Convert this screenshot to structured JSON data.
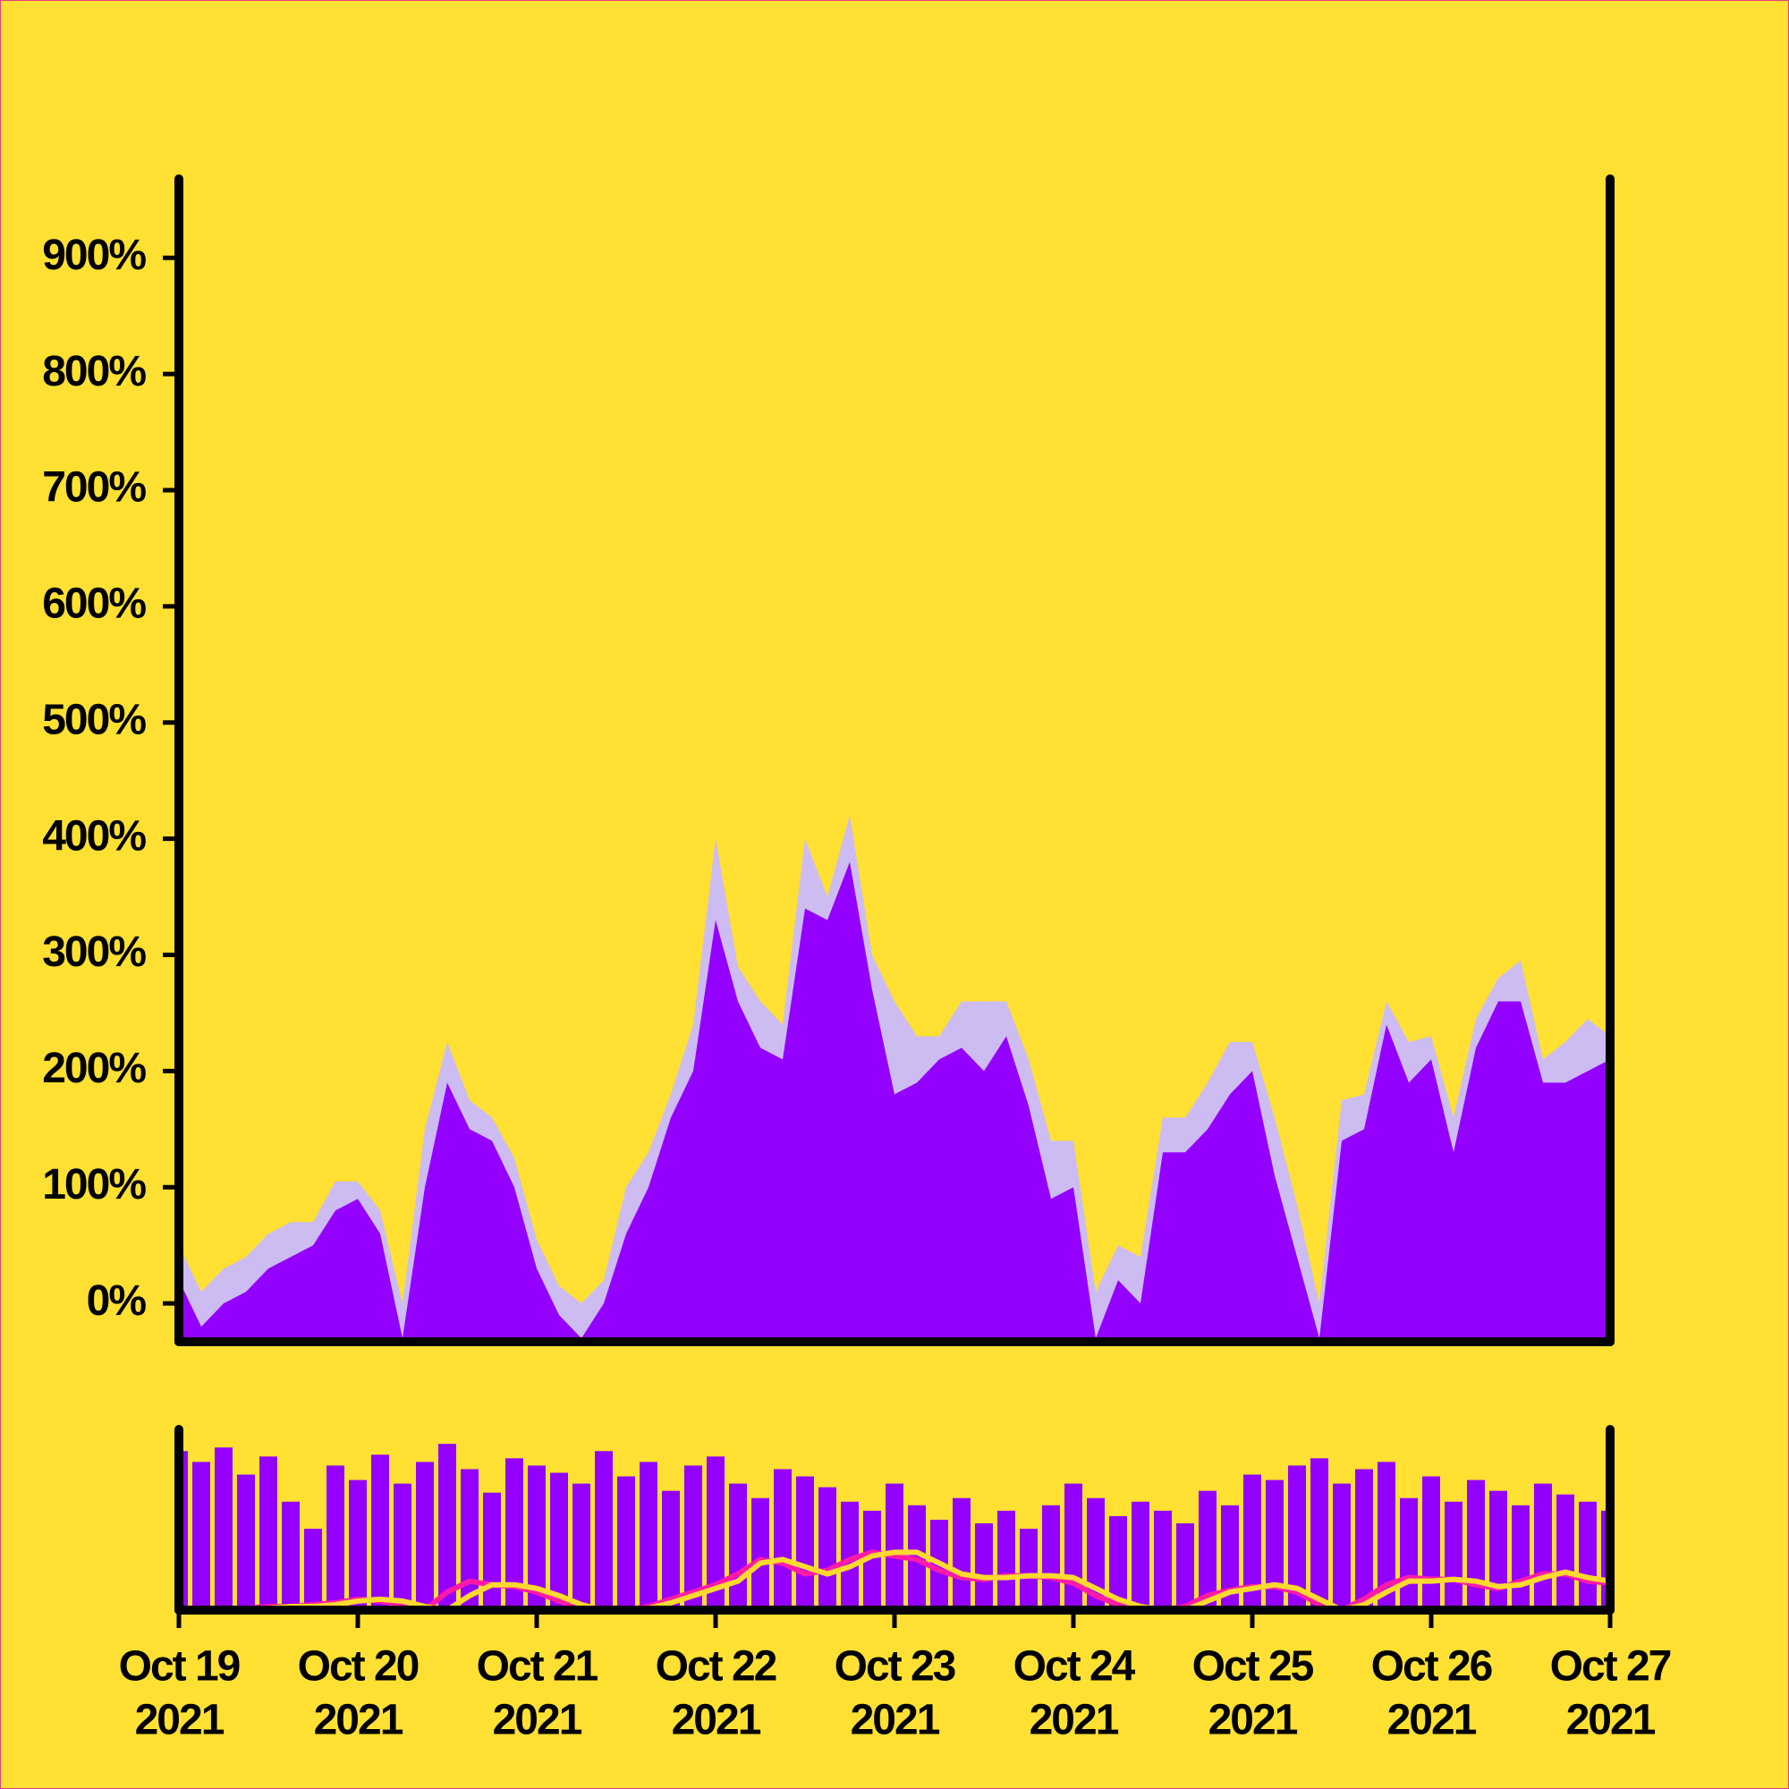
{
  "chart_data": [
    {
      "type": "area",
      "x": [
        0,
        0.125,
        0.25,
        0.375,
        0.5,
        0.625,
        0.75,
        0.875,
        1,
        1.125,
        1.25,
        1.375,
        1.5,
        1.625,
        1.75,
        1.875,
        2,
        2.125,
        2.25,
        2.375,
        2.5,
        2.625,
        2.75,
        2.875,
        3,
        3.125,
        3.25,
        3.375,
        3.5,
        3.625,
        3.75,
        3.875,
        4,
        4.125,
        4.25,
        4.375,
        4.5,
        4.625,
        4.75,
        4.875,
        5,
        5.125,
        5.25,
        5.375,
        5.5,
        5.625,
        5.75,
        5.875,
        6,
        6.125,
        6.25,
        6.375,
        6.5,
        6.625,
        6.75,
        6.875,
        7,
        7.125,
        7.25,
        7.375,
        7.5,
        7.625,
        7.75,
        7.875,
        8
      ],
      "xlim": [
        0,
        8
      ],
      "ylim": [
        -33,
        968
      ],
      "yticks": [
        {
          "value": 0,
          "label": "0%"
        },
        {
          "value": 100,
          "label": "100%"
        },
        {
          "value": 200,
          "label": "200%"
        },
        {
          "value": 300,
          "label": "300%"
        },
        {
          "value": 400,
          "label": "400%"
        },
        {
          "value": 500,
          "label": "500%"
        },
        {
          "value": 600,
          "label": "600%"
        },
        {
          "value": 700,
          "label": "700%"
        },
        {
          "value": 800,
          "label": "800%"
        },
        {
          "value": 900,
          "label": "900%"
        }
      ],
      "series": [
        {
          "color": "#cdbcf2",
          "values": [
            50,
            10,
            30,
            40,
            60,
            70,
            70,
            105,
            105,
            80,
            0,
            150,
            225,
            175,
            160,
            125,
            55,
            15,
            0,
            20,
            100,
            130,
            180,
            240,
            400,
            290,
            260,
            240,
            400,
            350,
            420,
            300,
            260,
            230,
            230,
            260,
            260,
            260,
            210,
            140,
            140,
            10,
            50,
            40,
            160,
            160,
            190,
            225,
            225,
            160,
            85,
            0,
            175,
            180,
            260,
            225,
            230,
            160,
            245,
            280,
            295,
            210,
            225,
            245,
            230
          ]
        },
        {
          "color": "#9400ff",
          "values": [
            20,
            -20,
            0,
            10,
            30,
            40,
            50,
            80,
            90,
            60,
            -30,
            100,
            190,
            150,
            140,
            100,
            30,
            -10,
            -30,
            0,
            60,
            100,
            160,
            200,
            330,
            260,
            220,
            210,
            340,
            330,
            380,
            270,
            180,
            190,
            210,
            220,
            200,
            230,
            170,
            90,
            100,
            -30,
            20,
            0,
            130,
            130,
            150,
            180,
            200,
            110,
            40,
            -30,
            140,
            150,
            240,
            190,
            210,
            130,
            220,
            260,
            260,
            190,
            190,
            200,
            210
          ]
        }
      ]
    },
    {
      "type": "bar",
      "x": [
        0,
        0.125,
        0.25,
        0.375,
        0.5,
        0.625,
        0.75,
        0.875,
        1,
        1.125,
        1.25,
        1.375,
        1.5,
        1.625,
        1.75,
        1.875,
        2,
        2.125,
        2.25,
        2.375,
        2.5,
        2.625,
        2.75,
        2.875,
        3,
        3.125,
        3.25,
        3.375,
        3.5,
        3.625,
        3.75,
        3.875,
        4,
        4.125,
        4.25,
        4.375,
        4.5,
        4.625,
        4.75,
        4.875,
        5,
        5.125,
        5.25,
        5.375,
        5.5,
        5.625,
        5.75,
        5.875,
        6,
        6.125,
        6.25,
        6.375,
        6.5,
        6.625,
        6.75,
        6.875,
        7,
        7.125,
        7.25,
        7.375,
        7.5,
        7.625,
        7.75,
        7.875,
        8
      ],
      "xlim": [
        0,
        8
      ],
      "ylim": [
        0,
        100
      ],
      "xticks": [
        {
          "value": 0,
          "label": [
            "Oct 19",
            "2021"
          ]
        },
        {
          "value": 1,
          "label": [
            "Oct 20",
            "2021"
          ]
        },
        {
          "value": 2,
          "label": [
            "Oct 21",
            "2021"
          ]
        },
        {
          "value": 3,
          "label": [
            "Oct 22",
            "2021"
          ]
        },
        {
          "value": 4,
          "label": [
            "Oct 23",
            "2021"
          ]
        },
        {
          "value": 5,
          "label": [
            "Oct 24",
            "2021"
          ]
        },
        {
          "value": 6,
          "label": [
            "Oct 25",
            "2021"
          ]
        },
        {
          "value": 7,
          "label": [
            "Oct 26",
            "2021"
          ]
        },
        {
          "value": 8,
          "label": [
            "Oct 27",
            "2021"
          ]
        }
      ],
      "series": [
        {
          "type": "bar",
          "color": "#9400ff",
          "values": [
            88,
            82,
            90,
            75,
            85,
            60,
            45,
            80,
            72,
            86,
            70,
            82,
            92,
            78,
            65,
            84,
            80,
            76,
            70,
            88,
            74,
            82,
            66,
            80,
            85,
            70,
            62,
            78,
            74,
            68,
            60,
            55,
            70,
            58,
            50,
            62,
            48,
            55,
            45,
            58,
            70,
            62,
            52,
            60,
            55,
            48,
            66,
            58,
            75,
            72,
            80,
            84,
            70,
            78,
            82,
            62,
            74,
            60,
            72,
            66,
            58,
            70,
            64,
            60,
            55
          ]
        },
        {
          "type": "line",
          "color": "#ff1aa8",
          "values": [
            0,
            0,
            1,
            1,
            2,
            2,
            3,
            4,
            6,
            5,
            3,
            0,
            10,
            16,
            14,
            13,
            10,
            5,
            1,
            0,
            0,
            2,
            6,
            10,
            14,
            20,
            28,
            26,
            20,
            22,
            28,
            32,
            30,
            28,
            22,
            18,
            17,
            19,
            19,
            18,
            15,
            8,
            3,
            0,
            0,
            2,
            8,
            11,
            13,
            13,
            10,
            3,
            0,
            6,
            14,
            18,
            17,
            17,
            14,
            12,
            16,
            20,
            20,
            16,
            15
          ]
        },
        {
          "type": "line",
          "color": "#ffd92e",
          "values": [
            0,
            0,
            0,
            1,
            1,
            2,
            2,
            3,
            5,
            6,
            5,
            2,
            0,
            8,
            14,
            14,
            12,
            8,
            3,
            0,
            0,
            1,
            4,
            8,
            12,
            16,
            26,
            28,
            24,
            20,
            24,
            30,
            32,
            32,
            26,
            20,
            18,
            18,
            19,
            19,
            18,
            12,
            6,
            2,
            0,
            0,
            5,
            10,
            12,
            14,
            12,
            6,
            0,
            3,
            10,
            16,
            16,
            17,
            16,
            13,
            14,
            18,
            21,
            18,
            16
          ]
        }
      ]
    }
  ]
}
